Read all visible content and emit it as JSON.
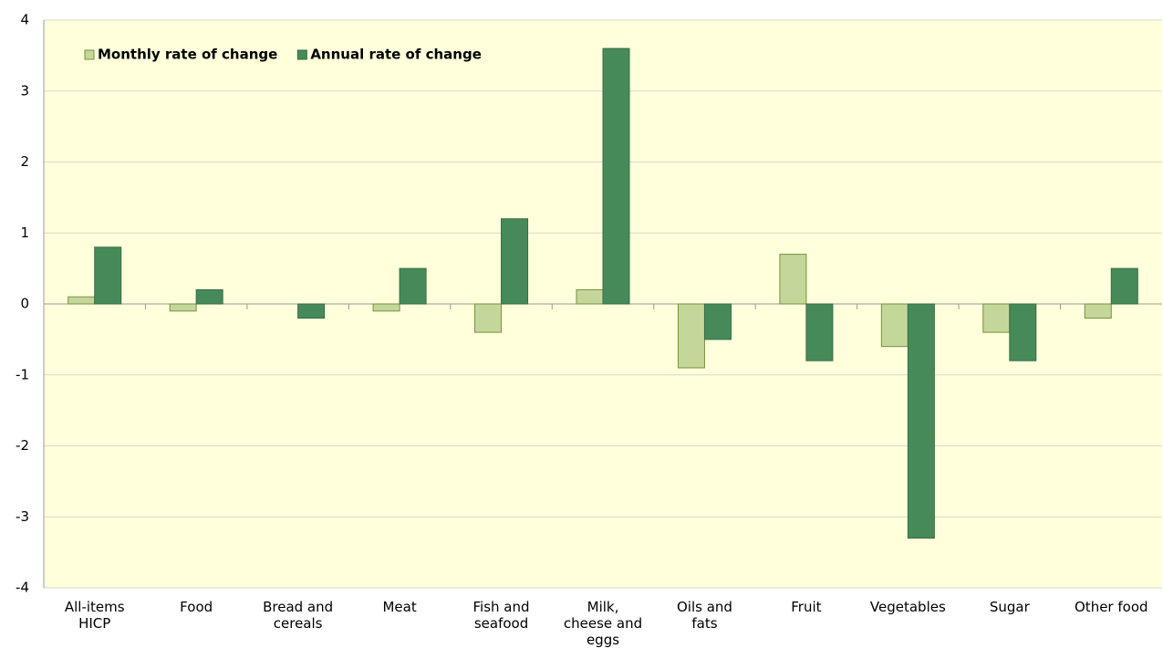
{
  "chart_data": {
    "type": "bar",
    "categories": [
      "All-items HICP",
      "Food",
      "Bread and cereals",
      "Meat",
      "Fish and seafood",
      "Milk, cheese and eggs",
      "Oils and fats",
      "Fruit",
      "Vegetables",
      "Sugar",
      "Other food"
    ],
    "series": [
      {
        "name": "Monthly rate of change",
        "color": "#c4d79b",
        "values": [
          0.1,
          -0.1,
          0,
          -0.1,
          -0.4,
          0.2,
          -0.9,
          0.7,
          -0.6,
          -0.4,
          -0.2
        ]
      },
      {
        "name": "Annual rate of change",
        "color": "#478a5a",
        "values": [
          0.8,
          0.2,
          -0.2,
          0.5,
          1.2,
          3.6,
          -0.5,
          -0.8,
          -3.3,
          -0.8,
          0.5
        ]
      }
    ],
    "ylim": [
      -4,
      4
    ],
    "yticks": [
      -4,
      -3,
      -2,
      -1,
      0,
      1,
      2,
      3,
      4
    ],
    "grid": true,
    "legend": "top-left"
  }
}
